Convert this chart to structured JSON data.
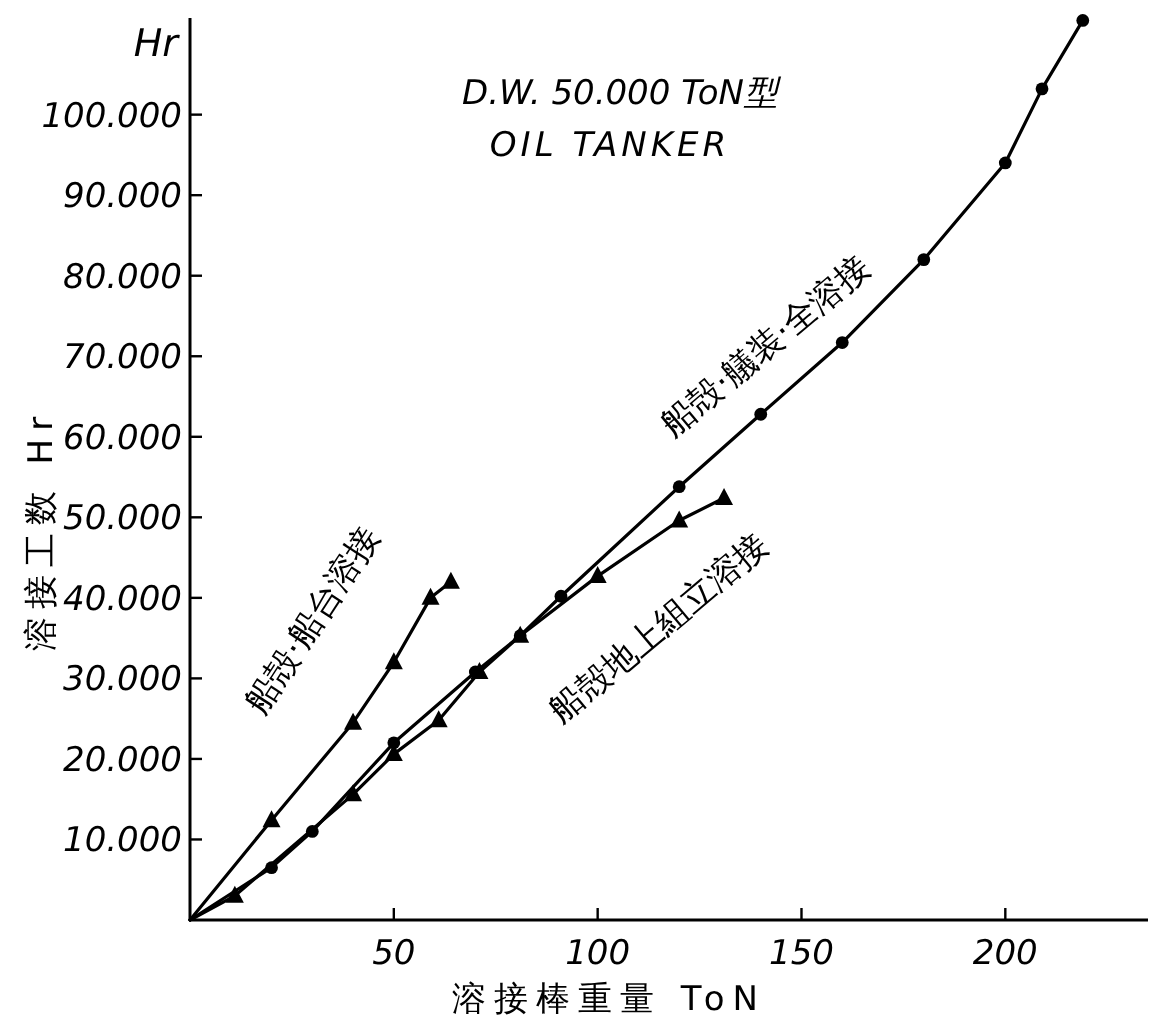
{
  "chart_data": {
    "type": "line",
    "title": "D.W. 50.000 ToN型",
    "subtitle": "OIL TANKER",
    "xlabel": "溶接棒重量 ToN",
    "ylabel": "溶接工数 Hr",
    "annotations": [
      "Hr"
    ],
    "series": [
      {
        "name": "船殻·船台溶接",
        "color": "#000000",
        "marker": "triangle",
        "x": [
          0,
          20,
          40,
          50,
          59,
          64
        ],
        "values": [
          0,
          12400,
          24500,
          32000,
          40000,
          42000
        ]
      },
      {
        "name": "船殻·艤装·全溶接",
        "color": "#000000",
        "marker": "circle",
        "x": [
          0,
          20,
          30,
          50,
          70,
          81,
          91,
          120,
          140,
          160,
          180,
          200,
          209,
          219
        ],
        "values": [
          0,
          6500,
          11000,
          22000,
          30800,
          35300,
          40200,
          53800,
          62800,
          71700,
          82000,
          94000,
          103200,
          111700
        ]
      },
      {
        "name": "船殻地上組立溶接",
        "color": "#000000",
        "marker": "triangle",
        "x": [
          0,
          11,
          40,
          50,
          61,
          71,
          81,
          100,
          120,
          131
        ],
        "values": [
          0,
          3000,
          15600,
          20600,
          24800,
          30800,
          35300,
          42700,
          49600,
          52400
        ]
      }
    ],
    "xlim": [
      0,
      235
    ],
    "ylim": [
      0,
      112000
    ],
    "xticks": [
      50,
      100,
      150,
      200
    ],
    "yticks": [
      {
        "value": 10000,
        "label": "10.000"
      },
      {
        "value": 20000,
        "label": "20.000"
      },
      {
        "value": 30000,
        "label": "30.000"
      },
      {
        "value": 40000,
        "label": "40.000"
      },
      {
        "value": 50000,
        "label": "50.000"
      },
      {
        "value": 60000,
        "label": "60.000"
      },
      {
        "value": 70000,
        "label": "70.000"
      },
      {
        "value": 80000,
        "label": "80.000"
      },
      {
        "value": 90000,
        "label": "90.000"
      },
      {
        "value": 100000,
        "label": "100.000"
      }
    ],
    "grid": false,
    "legend": false
  }
}
